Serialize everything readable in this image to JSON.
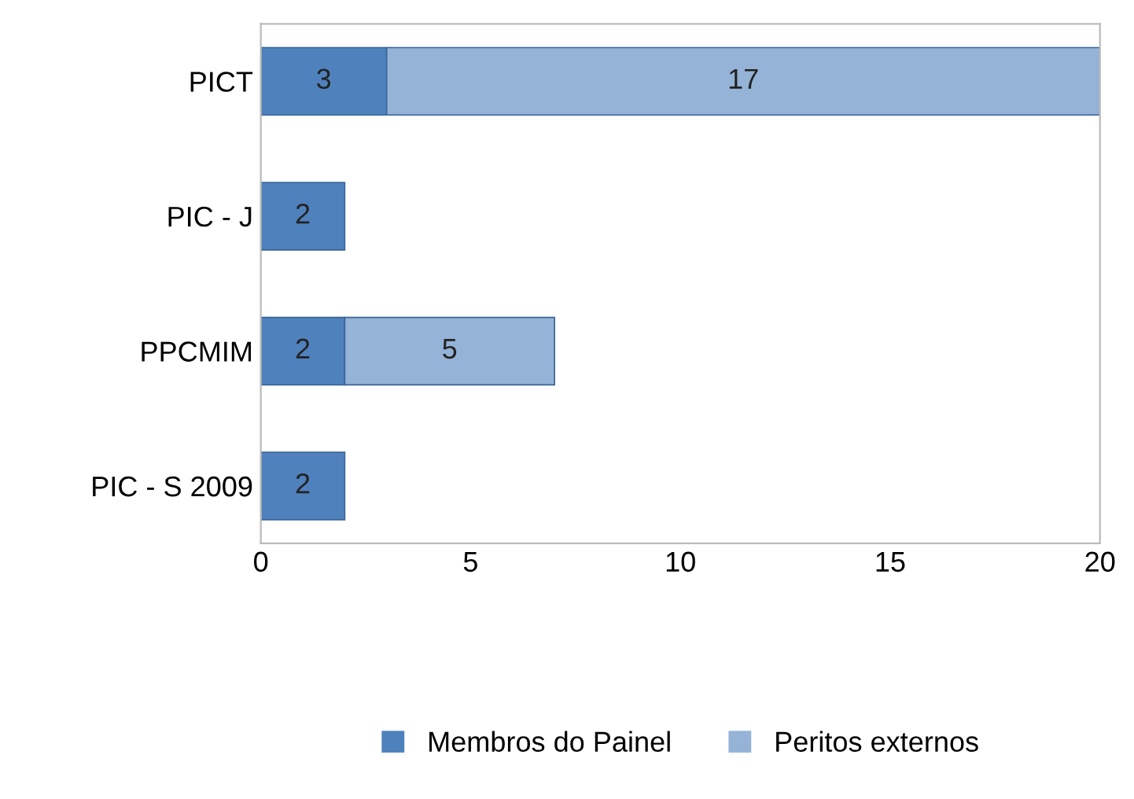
{
  "chart_data": {
    "type": "bar",
    "orientation": "horizontal",
    "stacked": true,
    "categories": [
      "PICT",
      "PIC - J",
      "PPCMIM",
      "PIC - S 2009"
    ],
    "series": [
      {
        "name": "Membros do Painel",
        "color": "#4f81bd",
        "values": [
          3,
          2,
          2,
          2
        ]
      },
      {
        "name": "Peritos externos",
        "color": "#95b3d7",
        "values": [
          17,
          null,
          5,
          null
        ]
      }
    ],
    "xlim": [
      0,
      20
    ],
    "xticks": [
      0,
      5,
      10,
      15,
      20
    ],
    "data_labels": true,
    "legend": "bottom",
    "grid": false
  }
}
